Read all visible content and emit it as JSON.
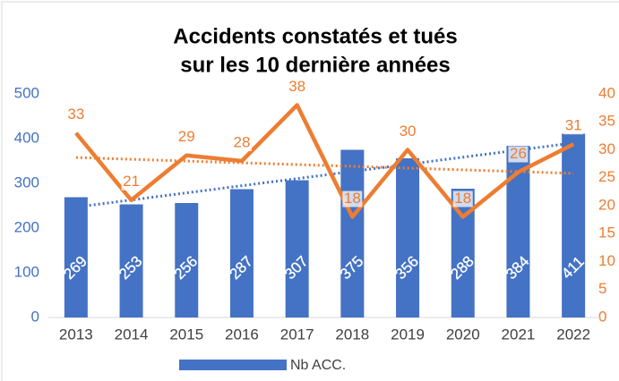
{
  "chart_data": {
    "type": "bar-line",
    "title": [
      "Accidents constatés et tués",
      "sur les 10 dernière années"
    ],
    "categories": [
      "2013",
      "2014",
      "2015",
      "2016",
      "2017",
      "2018",
      "2019",
      "2020",
      "2021",
      "2022"
    ],
    "series": [
      {
        "name": "Nb ACC.",
        "type": "bar",
        "color": "#4472c4",
        "values": [
          269,
          253,
          256,
          287,
          307,
          375,
          356,
          288,
          384,
          411
        ],
        "trendline": true
      },
      {
        "type": "line",
        "axis": "y2",
        "color": "#ed7d31",
        "values": [
          33,
          21,
          29,
          28,
          38,
          18,
          30,
          18,
          26,
          31
        ],
        "trendline": true
      }
    ],
    "ylim": [
      0,
      500
    ],
    "yticks": [
      0,
      100,
      200,
      300,
      400,
      500
    ],
    "y2lim": [
      0,
      40
    ],
    "y2ticks": [
      0,
      5,
      10,
      15,
      20,
      25,
      30,
      35,
      40
    ],
    "legend": "bottom",
    "grid": false
  }
}
